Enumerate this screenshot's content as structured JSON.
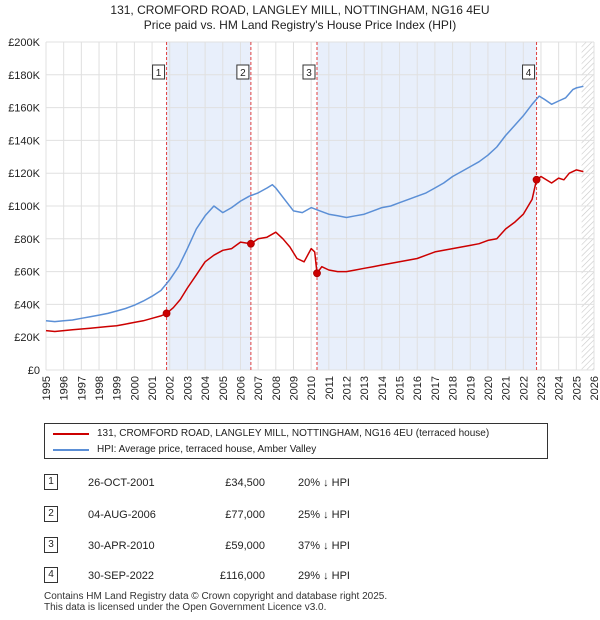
{
  "title_line1": "131, CROMFORD ROAD, LANGLEY MILL, NOTTINGHAM, NG16 4EU",
  "title_line2": "Price paid vs. HM Land Registry's House Price Index (HPI)",
  "colors": {
    "property": "#cc0000",
    "hpi": "#5b8fd6",
    "shade": "#e8effb",
    "vline": "#e04040",
    "grid": "#e0e0e0"
  },
  "chart_data": {
    "type": "line",
    "x_range": [
      1995,
      2026
    ],
    "ylim": [
      0,
      200000
    ],
    "y_ticks": [
      0,
      20000,
      40000,
      60000,
      80000,
      100000,
      120000,
      140000,
      160000,
      180000,
      200000
    ],
    "y_tick_labels": [
      "£0",
      "£20K",
      "£40K",
      "£60K",
      "£80K",
      "£100K",
      "£120K",
      "£140K",
      "£160K",
      "£180K",
      "£200K"
    ],
    "x_ticks": [
      1995,
      1996,
      1997,
      1998,
      1999,
      2000,
      2001,
      2002,
      2003,
      2004,
      2005,
      2006,
      2007,
      2008,
      2009,
      2010,
      2011,
      2012,
      2013,
      2014,
      2015,
      2016,
      2017,
      2018,
      2019,
      2020,
      2021,
      2022,
      2023,
      2024,
      2025,
      2026
    ],
    "shaded_periods": [
      [
        2001.82,
        2006.59
      ],
      [
        2010.33,
        2022.75
      ]
    ],
    "hatched_from": 2025.3,
    "series": [
      {
        "name": "131, CROMFORD ROAD, LANGLEY MILL, NOTTINGHAM, NG16 4EU (terraced house)",
        "x": [
          1995.0,
          1995.5,
          1996.0,
          1996.5,
          1997.0,
          1997.5,
          1998.0,
          1998.5,
          1999.0,
          1999.5,
          2000.0,
          2000.5,
          2001.0,
          2001.5,
          2001.82,
          2002.2,
          2002.6,
          2003.0,
          2003.5,
          2004.0,
          2004.5,
          2005.0,
          2005.5,
          2006.0,
          2006.59,
          2007.0,
          2007.5,
          2008.0,
          2008.4,
          2008.8,
          2009.2,
          2009.6,
          2010.0,
          2010.2,
          2010.33,
          2010.6,
          2011.0,
          2011.5,
          2012.0,
          2012.5,
          2013.0,
          2013.5,
          2014.0,
          2014.5,
          2015.0,
          2015.5,
          2016.0,
          2016.5,
          2017.0,
          2017.5,
          2018.0,
          2018.5,
          2019.0,
          2019.5,
          2020.0,
          2020.5,
          2021.0,
          2021.5,
          2022.0,
          2022.5,
          2022.75,
          2023.0,
          2023.3,
          2023.6,
          2024.0,
          2024.3,
          2024.6,
          2025.0,
          2025.4
        ],
        "values": [
          24000,
          23500,
          24000,
          24500,
          25000,
          25500,
          26000,
          26500,
          27000,
          28000,
          29000,
          30000,
          31500,
          33000,
          34500,
          38000,
          43000,
          50000,
          58000,
          66000,
          70000,
          73000,
          74000,
          78000,
          77000,
          80000,
          81000,
          84000,
          80000,
          75000,
          68000,
          66000,
          74000,
          72000,
          59000,
          63000,
          61000,
          60000,
          60000,
          61000,
          62000,
          63000,
          64000,
          65000,
          66000,
          67000,
          68000,
          70000,
          72000,
          73000,
          74000,
          75000,
          76000,
          77000,
          79000,
          80000,
          86000,
          90000,
          95000,
          104000,
          116000,
          118000,
          116000,
          114000,
          117000,
          116000,
          120000,
          122000,
          121000
        ]
      },
      {
        "name": "HPI: Average price, terraced house, Amber Valley",
        "x": [
          1995.0,
          1995.5,
          1996.0,
          1996.5,
          1997.0,
          1997.5,
          1998.0,
          1998.5,
          1999.0,
          1999.5,
          2000.0,
          2000.5,
          2001.0,
          2001.5,
          2002.0,
          2002.5,
          2003.0,
          2003.5,
          2004.0,
          2004.5,
          2005.0,
          2005.5,
          2006.0,
          2006.5,
          2007.0,
          2007.5,
          2007.8,
          2008.0,
          2008.5,
          2009.0,
          2009.5,
          2010.0,
          2010.5,
          2011.0,
          2011.5,
          2012.0,
          2012.5,
          2013.0,
          2013.5,
          2014.0,
          2014.5,
          2015.0,
          2015.5,
          2016.0,
          2016.5,
          2017.0,
          2017.5,
          2018.0,
          2018.5,
          2019.0,
          2019.5,
          2020.0,
          2020.5,
          2021.0,
          2021.5,
          2022.0,
          2022.5,
          2022.9,
          2023.2,
          2023.6,
          2024.0,
          2024.4,
          2024.8,
          2025.0,
          2025.4
        ],
        "values": [
          30000,
          29500,
          30000,
          30500,
          31500,
          32500,
          33500,
          34500,
          36000,
          37500,
          39500,
          42000,
          45000,
          48500,
          55000,
          63000,
          74000,
          86000,
          94000,
          100000,
          96000,
          99000,
          103000,
          106000,
          108000,
          111000,
          113000,
          111000,
          104000,
          97000,
          96000,
          99000,
          97000,
          95000,
          94000,
          93000,
          94000,
          95000,
          97000,
          99000,
          100000,
          102000,
          104000,
          106000,
          108000,
          111000,
          114000,
          118000,
          121000,
          124000,
          127000,
          131000,
          136000,
          143000,
          149000,
          155000,
          162000,
          167000,
          165000,
          162000,
          164000,
          166000,
          171000,
          172000,
          173000
        ]
      }
    ],
    "sales": [
      {
        "num": "1",
        "x": 2001.82,
        "value": 34500
      },
      {
        "num": "2",
        "x": 2006.59,
        "value": 77000
      },
      {
        "num": "3",
        "x": 2010.33,
        "value": 59000
      },
      {
        "num": "4",
        "x": 2022.75,
        "value": 116000
      }
    ]
  },
  "legend": {
    "property_label": "131, CROMFORD ROAD, LANGLEY MILL, NOTTINGHAM, NG16 4EU (terraced house)",
    "hpi_label": "HPI: Average price, terraced house, Amber Valley"
  },
  "transactions": [
    {
      "num": "1",
      "date": "26-OCT-2001",
      "price": "£34,500",
      "hpi": "20% ↓ HPI"
    },
    {
      "num": "2",
      "date": "04-AUG-2006",
      "price": "£77,000",
      "hpi": "25% ↓ HPI"
    },
    {
      "num": "3",
      "date": "30-APR-2010",
      "price": "£59,000",
      "hpi": "37% ↓ HPI"
    },
    {
      "num": "4",
      "date": "30-SEP-2022",
      "price": "£116,000",
      "hpi": "29% ↓ HPI"
    }
  ],
  "footer_line1": "Contains HM Land Registry data © Crown copyright and database right 2025.",
  "footer_line2": "This data is licensed under the Open Government Licence v3.0."
}
